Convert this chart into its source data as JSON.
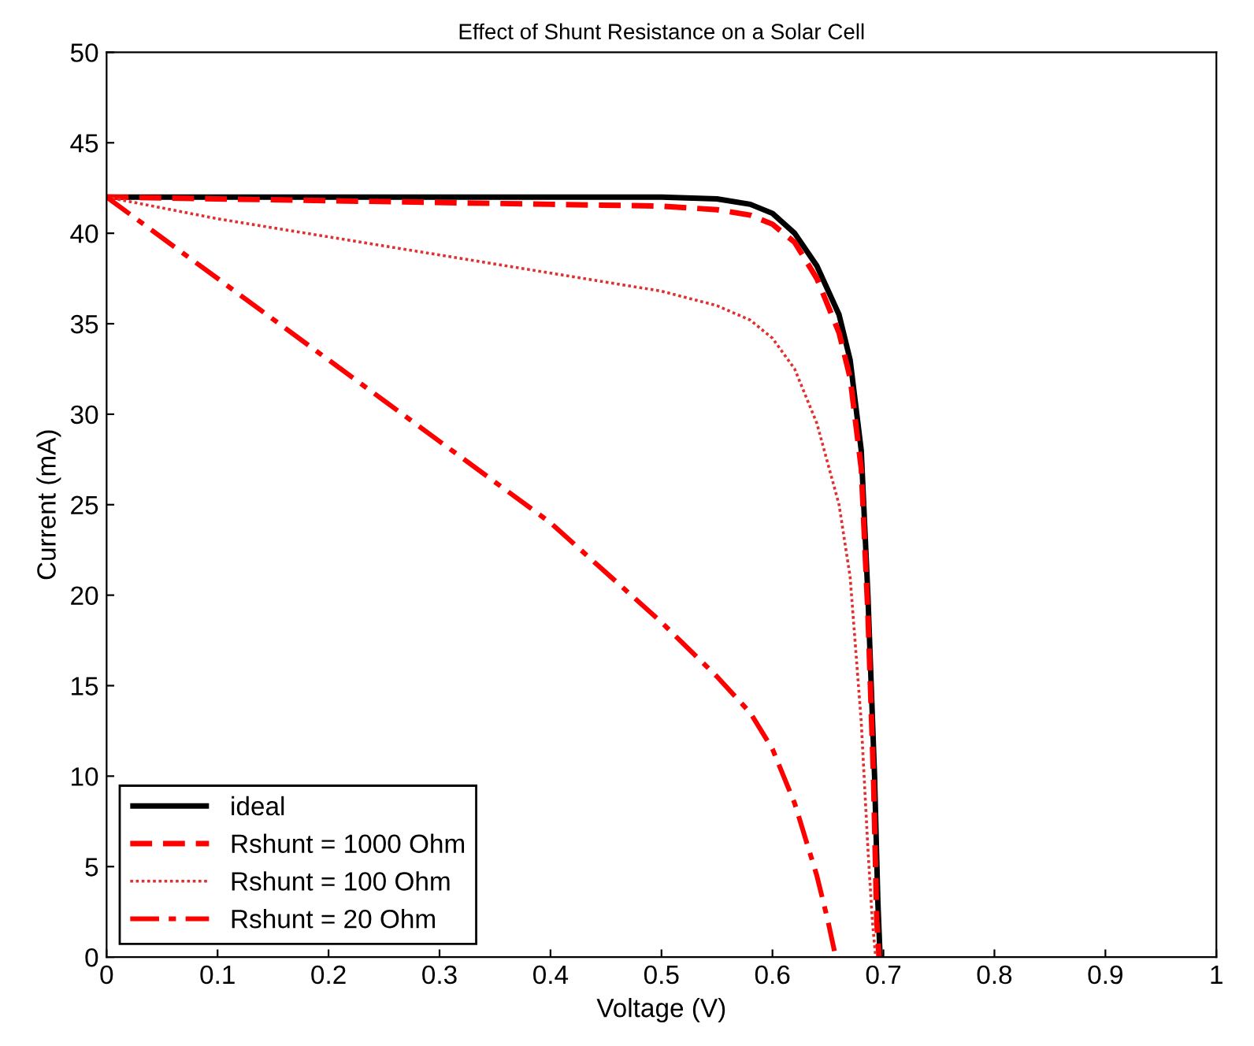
{
  "chart_data": {
    "type": "line",
    "title": "Effect of Shunt Resistance on a Solar Cell",
    "xlabel": "Voltage (V)",
    "ylabel": "Current (mA)",
    "xlim": [
      0,
      1
    ],
    "xticks": [
      0,
      0.1,
      0.2,
      0.3,
      0.4,
      0.5,
      0.6,
      0.7,
      0.8,
      0.9,
      1
    ],
    "ylim": [
      0,
      50
    ],
    "yticks": [
      0,
      5,
      10,
      15,
      20,
      25,
      30,
      35,
      40,
      45,
      50
    ],
    "grid": false,
    "legend": "bottom left",
    "series": [
      {
        "name": "ideal",
        "color": "#000000",
        "line_style": "solid",
        "x": [
          0,
          0.5,
          0.55,
          0.58,
          0.6,
          0.62,
          0.64,
          0.66,
          0.67,
          0.68,
          0.686,
          0.692,
          0.695,
          0.697
        ],
        "values": [
          42,
          42,
          41.9,
          41.6,
          41.1,
          40,
          38.2,
          35.5,
          33,
          28,
          20,
          10,
          3,
          0
        ]
      },
      {
        "name": "Rshunt = 1000 Ohm",
        "color": "#ff0000",
        "line_style": "dashed",
        "x": [
          0,
          0.2,
          0.4,
          0.5,
          0.55,
          0.58,
          0.6,
          0.62,
          0.64,
          0.66,
          0.67,
          0.68,
          0.686,
          0.691,
          0.694,
          0.696
        ],
        "values": [
          42,
          41.8,
          41.6,
          41.5,
          41.3,
          41,
          40.5,
          39.5,
          37.5,
          34.5,
          32,
          27,
          19,
          10,
          2,
          0
        ]
      },
      {
        "name": "Rshunt = 100 Ohm",
        "color": "#e03030",
        "line_style": "dotted",
        "x": [
          0,
          0.1,
          0.2,
          0.3,
          0.4,
          0.5,
          0.55,
          0.58,
          0.6,
          0.62,
          0.64,
          0.66,
          0.67,
          0.68,
          0.686,
          0.69,
          0.693
        ],
        "values": [
          42,
          40.8,
          39.8,
          38.8,
          37.8,
          36.8,
          36,
          35.2,
          34.2,
          32.5,
          29.5,
          25,
          21,
          13,
          6,
          2,
          0
        ]
      },
      {
        "name": "Rshunt = 20 Ohm",
        "color": "#ff0000",
        "line_style": "dashdot",
        "x": [
          0,
          0.1,
          0.2,
          0.3,
          0.4,
          0.5,
          0.55,
          0.58,
          0.6,
          0.62,
          0.63,
          0.64,
          0.65,
          0.657
        ],
        "values": [
          42,
          37.5,
          33,
          28.5,
          24,
          18.5,
          15.5,
          13.5,
          11.5,
          8.5,
          6.5,
          4.5,
          2,
          0
        ]
      }
    ]
  }
}
